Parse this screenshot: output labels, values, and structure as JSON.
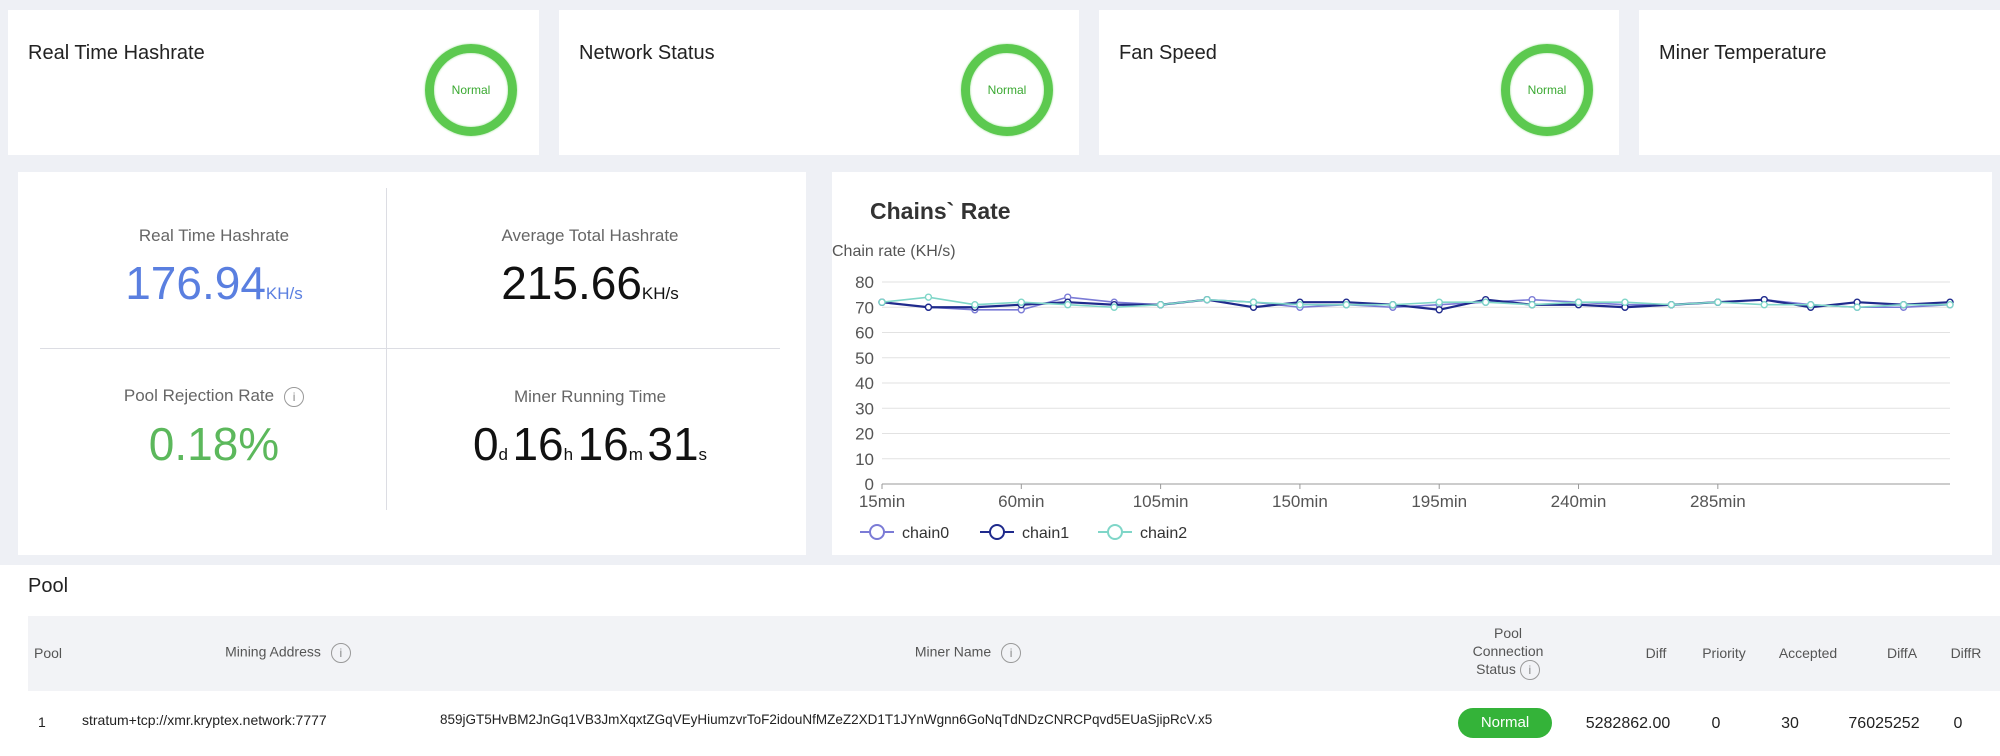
{
  "status_cards": [
    {
      "title": "Real Time Hashrate",
      "status": "Normal"
    },
    {
      "title": "Network Status",
      "status": "Normal"
    },
    {
      "title": "Fan Speed",
      "status": "Normal"
    },
    {
      "title": "Miner Temperature",
      "status": ""
    }
  ],
  "stats": {
    "realtime": {
      "label": "Real Time Hashrate",
      "value": "176.94",
      "unit": "KH/s"
    },
    "average": {
      "label": "Average Total Hashrate",
      "value": "215.66",
      "unit": "KH/s"
    },
    "rejection": {
      "label": "Pool Rejection Rate",
      "value": "0.18%"
    },
    "runtime": {
      "label": "Miner Running Time",
      "days": "0",
      "d": "d",
      "hours": "16",
      "h": "h",
      "minutes": "16",
      "m": "m",
      "seconds": "31",
      "s": "s"
    }
  },
  "chart_data": {
    "type": "line",
    "title": "Chains` Rate",
    "ylabel": "Chain rate (KH/s)",
    "ylim": [
      0,
      80
    ],
    "yticks": [
      0,
      10,
      20,
      30,
      40,
      50,
      60,
      70,
      80
    ],
    "x": [
      "15min",
      "30min",
      "45min",
      "60min",
      "75min",
      "90min",
      "105min",
      "120min",
      "135min",
      "150min",
      "165min",
      "180min",
      "195min",
      "210min",
      "225min",
      "240min",
      "255min",
      "270min",
      "285min",
      "300min",
      "315min",
      "330min",
      "345min",
      "360min"
    ],
    "xtick_labels": [
      "15min",
      "60min",
      "105min",
      "150min",
      "195min",
      "240min",
      "285min"
    ],
    "legend_position": "bottom-left",
    "series": [
      {
        "name": "chain0",
        "color": "#7b7bd6",
        "values": [
          72,
          70,
          69,
          69,
          74,
          72,
          71,
          73,
          72,
          70,
          71,
          70,
          71,
          72,
          73,
          72,
          71,
          71,
          72,
          73,
          71,
          70,
          70,
          71
        ]
      },
      {
        "name": "chain1",
        "color": "#1f2a8c",
        "values": [
          72,
          70,
          70,
          71,
          72,
          71,
          71,
          73,
          70,
          72,
          72,
          71,
          69,
          73,
          71,
          71,
          70,
          71,
          72,
          73,
          70,
          72,
          71,
          72
        ]
      },
      {
        "name": "chain2",
        "color": "#7fd6c8",
        "values": [
          72,
          74,
          71,
          72,
          71,
          70,
          71,
          73,
          72,
          71,
          71,
          71,
          72,
          72,
          71,
          72,
          72,
          71,
          72,
          71,
          71,
          70,
          71,
          71
        ]
      }
    ]
  },
  "pool": {
    "title": "Pool",
    "headers": {
      "pool": "Pool",
      "address": "Mining Address",
      "miner": "Miner Name",
      "status_l1": "Pool",
      "status_l2": "Connection",
      "status_l3": "Status",
      "diff": "Diff",
      "priority": "Priority",
      "accepted": "Accepted",
      "diffa": "DiffA",
      "diffr": "DiffR"
    },
    "row": {
      "pool": "1",
      "address": "stratum+tcp://xmr.kryptex.network:7777",
      "miner": "859jGT5HvBM2JnGq1VB3JmXqxtZGqVEyHiumzvrToF2idouNfMZeZ2XD1T1JYnWgnn6GoNqTdNDzCNRCPqvd5EUaSjipRcV.x5",
      "status": "Normal",
      "diff": "5282862.00",
      "priority": "0",
      "accepted": "30",
      "diffa": "76025252",
      "diffr": "0"
    },
    "info_glyph": "i"
  }
}
